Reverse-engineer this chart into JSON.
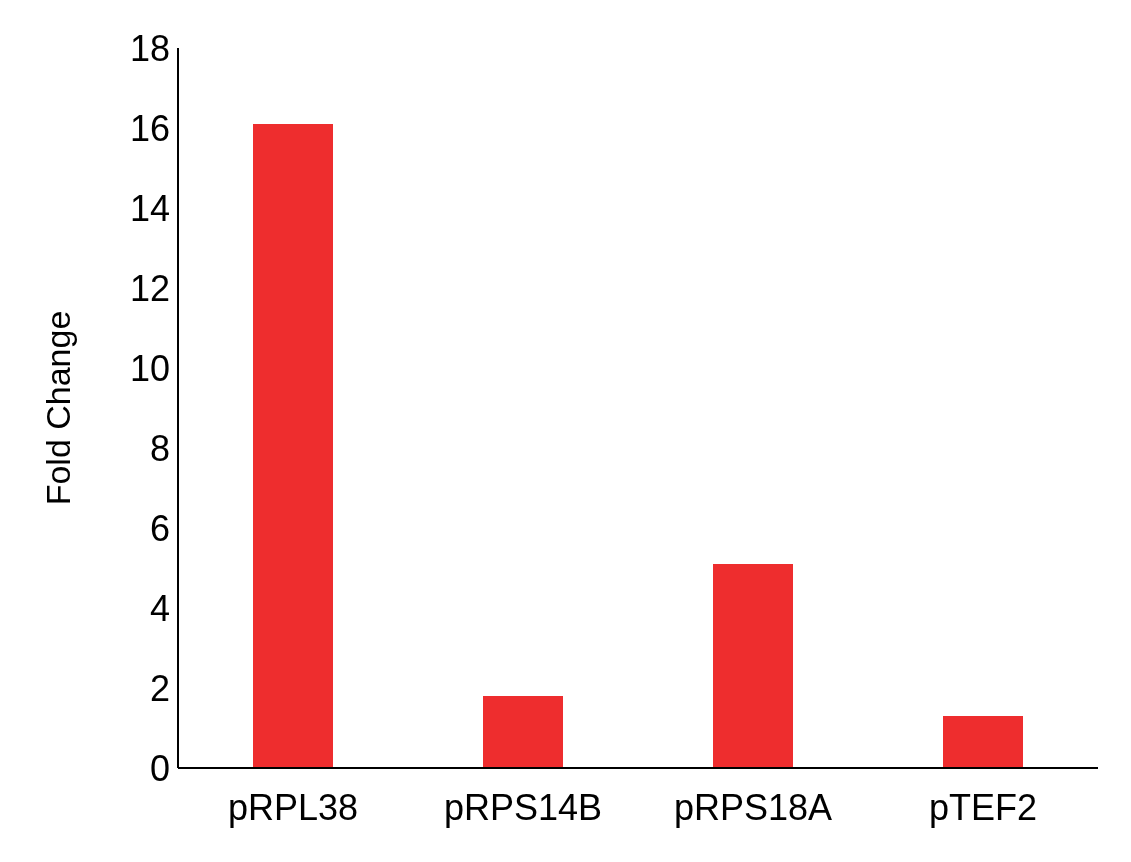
{
  "chart_data": {
    "type": "bar",
    "ylabel": "Fold Change",
    "categories": [
      "pRPL38",
      "pRPS14B",
      "pRPS18A",
      "pTEF2"
    ],
    "values": [
      16.1,
      1.8,
      5.1,
      1.3
    ],
    "color": "#ee2d2e",
    "ylim": [
      0,
      18
    ],
    "yticks": [
      0,
      2,
      4,
      6,
      8,
      10,
      12,
      14,
      16,
      18
    ],
    "grid": false,
    "legend": false
  }
}
